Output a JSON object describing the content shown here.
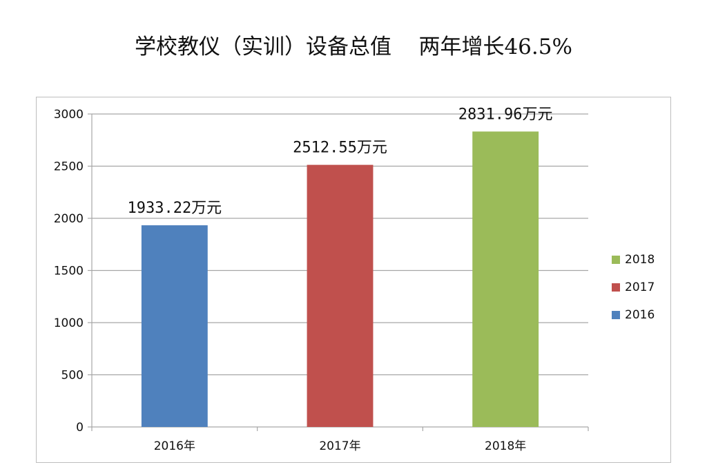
{
  "title": "学校教仪（实训）设备总值    两年增长46.5%",
  "chart_data": {
    "type": "bar",
    "categories": [
      "2016年",
      "2017年",
      "2018年"
    ],
    "values": [
      1933.22,
      2512.55,
      2831.96
    ],
    "data_labels": [
      "1933.22万元",
      "2512.55万元",
      "2831.96万元"
    ],
    "colors": [
      "#4f81bd",
      "#c0504d",
      "#9bbb59"
    ],
    "yticks": [
      0,
      500,
      1000,
      1500,
      2000,
      2500,
      3000
    ],
    "ylim": [
      0,
      3000
    ],
    "grid": true,
    "legend_position": "right",
    "legend": [
      {
        "label": "2018",
        "color": "#9bbb59"
      },
      {
        "label": "2017",
        "color": "#c0504d"
      },
      {
        "label": "2016",
        "color": "#4f81bd"
      }
    ]
  }
}
